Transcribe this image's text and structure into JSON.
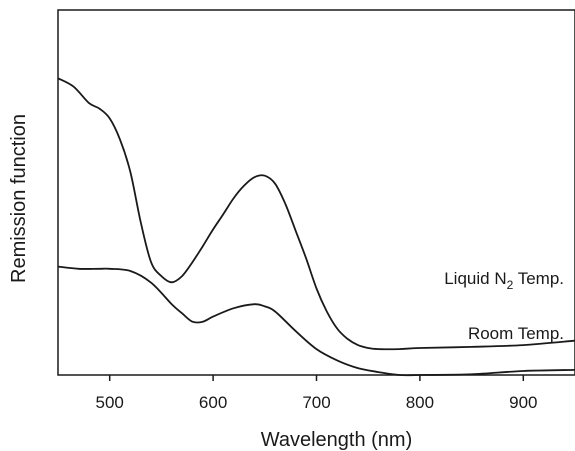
{
  "chart_data": {
    "type": "line",
    "title": "",
    "xlabel": "Wavelength (nm)",
    "ylabel": "Remission function",
    "xlim": [
      450,
      950
    ],
    "ylim": [
      0,
      1
    ],
    "x_ticks": [
      500,
      600,
      700,
      800,
      900
    ],
    "y_ticks": [],
    "grid": false,
    "legend": "none",
    "series": [
      {
        "name": "Liquid N₂ Temp.",
        "label_parts": {
          "prefix": "Liquid N",
          "subscript": "2",
          "suffix": " Temp."
        },
        "color": "#1a1a1a",
        "x": [
          450,
          465,
          480,
          490,
          500,
          510,
          520,
          530,
          540,
          550,
          560,
          570,
          580,
          590,
          600,
          610,
          620,
          630,
          640,
          650,
          660,
          670,
          680,
          690,
          700,
          710,
          720,
          730,
          740,
          750,
          760,
          780,
          800,
          850,
          900,
          950
        ],
        "y": [
          0.813,
          0.79,
          0.745,
          0.73,
          0.703,
          0.645,
          0.556,
          0.419,
          0.309,
          0.271,
          0.254,
          0.271,
          0.309,
          0.353,
          0.399,
          0.441,
          0.485,
          0.519,
          0.542,
          0.546,
          0.524,
          0.468,
          0.394,
          0.319,
          0.237,
          0.174,
          0.127,
          0.099,
          0.082,
          0.074,
          0.071,
          0.071,
          0.074,
          0.077,
          0.082,
          0.094
        ]
      },
      {
        "name": "Room Temp.",
        "color": "#1a1a1a",
        "x": [
          450,
          470,
          490,
          500,
          520,
          540,
          560,
          570,
          580,
          590,
          600,
          620,
          640,
          650,
          660,
          680,
          700,
          720,
          740,
          760,
          780,
          800,
          850,
          900,
          950
        ],
        "y": [
          0.297,
          0.291,
          0.291,
          0.291,
          0.285,
          0.253,
          0.194,
          0.169,
          0.146,
          0.146,
          0.16,
          0.183,
          0.194,
          0.188,
          0.174,
          0.12,
          0.071,
          0.04,
          0.019,
          0.008,
          0.0,
          0.0,
          0.002,
          0.011,
          0.014
        ]
      }
    ]
  }
}
